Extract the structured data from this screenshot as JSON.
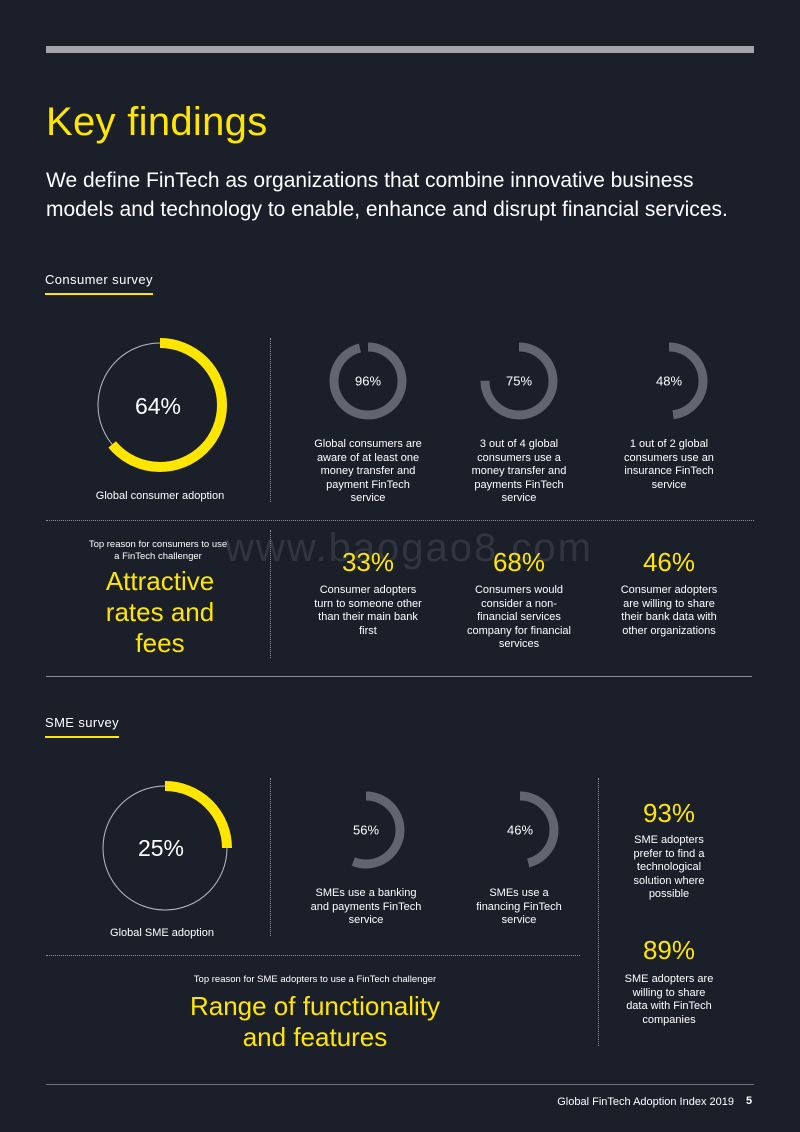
{
  "header": {
    "title": "Key findings",
    "intro": "We define FinTech as organizations that combine innovative business models and technology to enable, enhance and disrupt financial services."
  },
  "consumer": {
    "section_label": "Consumer survey",
    "main": {
      "pct": "64%",
      "value": 0.64,
      "caption": "Global consumer adoption"
    },
    "rings": [
      {
        "pct": "96%",
        "value": 0.96,
        "caption": "Global consumers are aware of at least one money transfer and payment FinTech service"
      },
      {
        "pct": "75%",
        "value": 0.75,
        "caption": "3 out of 4 global consumers use a money transfer and payments FinTech service"
      },
      {
        "pct": "48%",
        "value": 0.48,
        "caption": "1 out of 2 global consumers use an insurance FinTech service"
      }
    ],
    "top_reason": {
      "label": "Top reason for consumers to use a FinTech challenger",
      "line1": "Attractive",
      "line2": "rates and",
      "line3": "fees"
    },
    "stats": [
      {
        "pct": "33%",
        "caption": "Consumer adopters turn to someone other than their main bank first"
      },
      {
        "pct": "68%",
        "caption": "Consumers would consider a non-financial services company for financial services"
      },
      {
        "pct": "46%",
        "caption": "Consumer adopters are willing to share their bank data with other organizations"
      }
    ]
  },
  "sme": {
    "section_label": "SME survey",
    "main": {
      "pct": "25%",
      "value": 0.25,
      "caption": "Global SME adoption"
    },
    "rings": [
      {
        "pct": "56%",
        "value": 0.56,
        "caption": "SMEs use a banking and payments FinTech service"
      },
      {
        "pct": "46%",
        "value": 0.46,
        "caption": "SMEs use a financing FinTech service"
      }
    ],
    "stats": [
      {
        "pct": "93%",
        "caption": "SME adopters prefer to find a technological solution where possible"
      },
      {
        "pct": "89%",
        "caption": "SME adopters are willing to share data with FinTech companies"
      }
    ],
    "top_reason": {
      "label": "Top reason for SME adopters to use a FinTech challenger",
      "line1": "Range of functionality",
      "line2": "and features"
    }
  },
  "watermark": "www.baogao8.com",
  "footer": {
    "text": "Global FinTech Adoption Index 2019",
    "page": "5"
  },
  "colors": {
    "background": "#1a1f2a",
    "accent": "#ffe600",
    "ring_grey": "#5f6670",
    "track": "#b9bcc2"
  }
}
